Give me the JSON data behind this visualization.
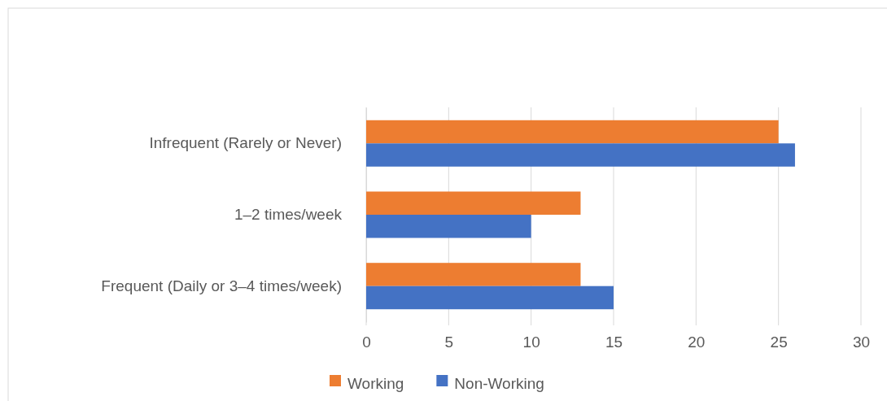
{
  "chart_data": {
    "type": "bar",
    "orientation": "horizontal",
    "categories": [
      "Infrequent (Rarely or Never)",
      "1–2 times/week",
      "Frequent (Daily or 3–4 times/week)"
    ],
    "series": [
      {
        "name": "Working",
        "color": "#ed7d31",
        "values": [
          25,
          13,
          13
        ]
      },
      {
        "name": "Non-Working",
        "color": "#4472c4",
        "values": [
          26,
          10,
          15
        ]
      }
    ],
    "xlim": [
      0,
      30
    ],
    "xticks": [
      0,
      5,
      10,
      15,
      20,
      25,
      30
    ],
    "grid": "x",
    "legend": "bottom"
  }
}
